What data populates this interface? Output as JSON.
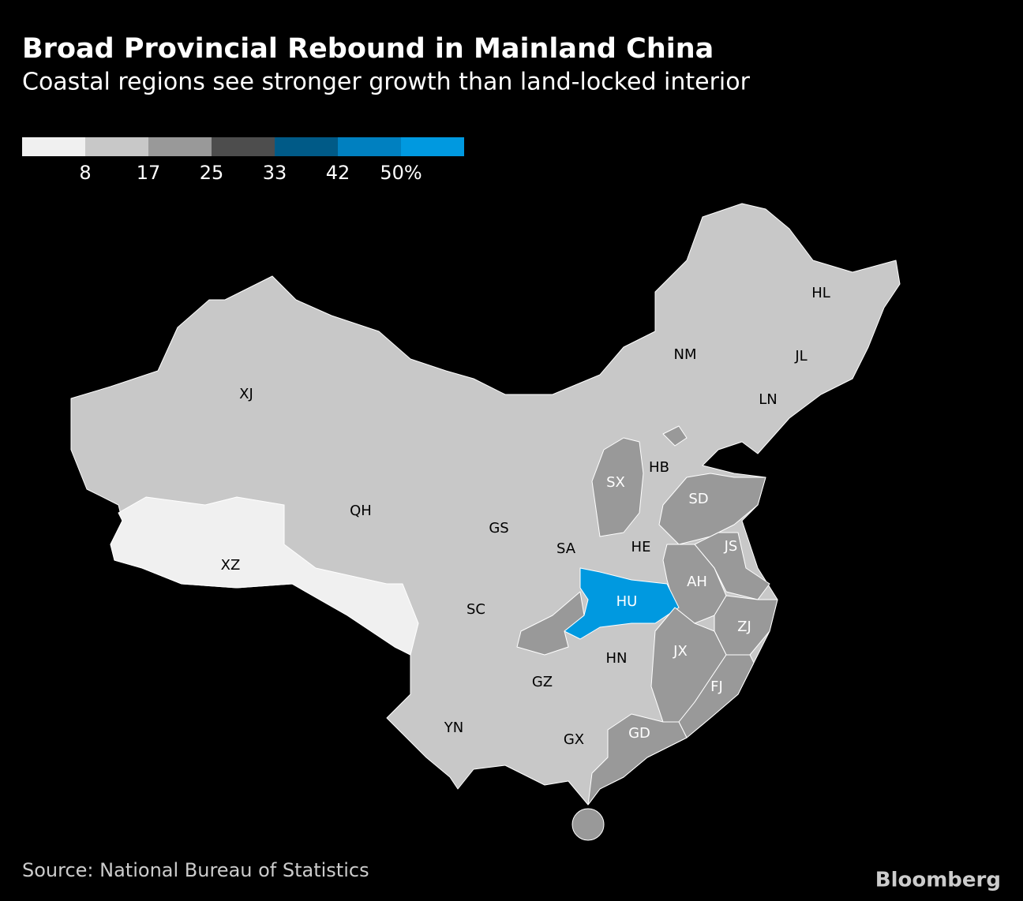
{
  "title": "Broad Provincial Rebound in Mainland China",
  "subtitle": "Coastal regions see stronger growth than land-locked interior",
  "legend": {
    "colors": [
      "#f0f0f0",
      "#c8c8c8",
      "#999999",
      "#4d4d4d",
      "#005a87",
      "#0080c0",
      "#0099e0"
    ],
    "ticks": [
      8,
      17,
      25,
      33,
      42,
      {
        "value": 50,
        "label": "50%"
      }
    ]
  },
  "provinces": [
    {
      "label": "HL",
      "color": "#c8c8c8"
    },
    {
      "label": "JL",
      "color": "#c8c8c8"
    },
    {
      "label": "NM",
      "color": "#c8c8c8"
    },
    {
      "label": "LN",
      "color": "#c8c8c8"
    },
    {
      "label": "XJ",
      "color": "#c8c8c8"
    },
    {
      "label": "HB",
      "color": "#c8c8c8"
    },
    {
      "label": "SX",
      "color": "#999999"
    },
    {
      "label": "SD",
      "color": "#999999"
    },
    {
      "label": "QH",
      "color": "#c8c8c8"
    },
    {
      "label": "GS",
      "color": "#c8c8c8"
    },
    {
      "label": "SA",
      "color": "#c8c8c8"
    },
    {
      "label": "HE",
      "color": "#c8c8c8"
    },
    {
      "label": "JS",
      "color": "#999999"
    },
    {
      "label": "XZ",
      "color": "#f0f0f0"
    },
    {
      "label": "AH",
      "color": "#999999"
    },
    {
      "label": "HU",
      "color": "#0099e0"
    },
    {
      "label": "SC",
      "color": "#c8c8c8"
    },
    {
      "label": "ZJ",
      "color": "#999999"
    },
    {
      "label": "JX",
      "color": "#999999"
    },
    {
      "label": "HN",
      "color": "#c8c8c8"
    },
    {
      "label": "FJ",
      "color": "#999999"
    },
    {
      "label": "GZ",
      "color": "#c8c8c8"
    },
    {
      "label": "YN",
      "color": "#c8c8c8"
    },
    {
      "label": "GX",
      "color": "#c8c8c8"
    },
    {
      "label": "GD",
      "color": "#999999"
    }
  ],
  "source": "Source: National Bureau of Statistics",
  "brand": "Bloomberg"
}
